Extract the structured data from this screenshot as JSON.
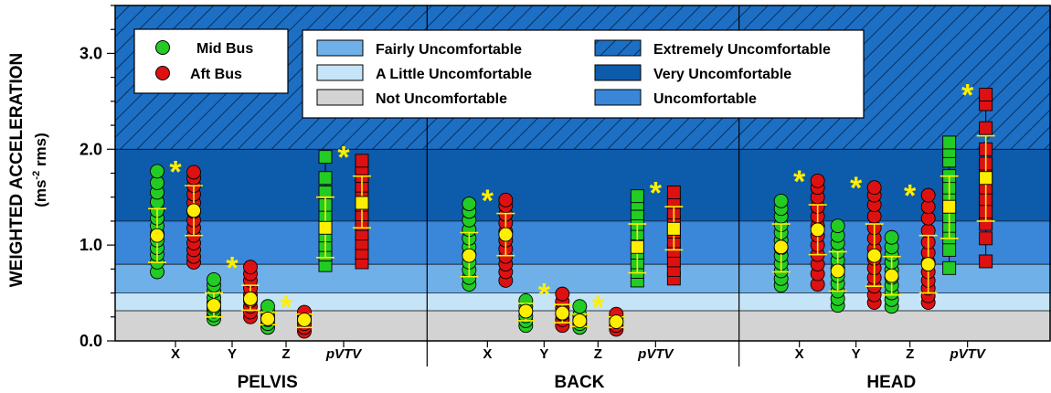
{
  "chart_data": {
    "type": "scatter",
    "ylabel_main": "WEIGHTED ACCELERATION",
    "ylabel_unit_pre": "(ms",
    "ylabel_unit_sup": "-2",
    "ylabel_unit_post": " rms)",
    "ylim": [
      0,
      3.5
    ],
    "yticks": [
      "0.0",
      "1.0",
      "2.0",
      "3.0"
    ],
    "grid": false,
    "legend_placement": "top-left",
    "groups": [
      "PELVIS",
      "BACK",
      "HEAD"
    ],
    "categories": [
      "X",
      "Y",
      "Z",
      "pVTV"
    ],
    "zones": [
      {
        "label": "Not Uncomfortable",
        "from": 0.0,
        "to": 0.315,
        "color": "#d3d3d3"
      },
      {
        "label": "A Little Uncomfortable",
        "from": 0.315,
        "to": 0.5,
        "color": "#c6e4f8"
      },
      {
        "label": "Fairly Uncomfortable",
        "from": 0.5,
        "to": 0.8,
        "color": "#6fb0e8"
      },
      {
        "label": "Uncomfortable",
        "from": 0.8,
        "to": 1.25,
        "color": "#3a86d9"
      },
      {
        "label": "Very Uncomfortable",
        "from": 1.25,
        "to": 2.0,
        "color": "#0d5bab"
      },
      {
        "label": "Extremely Uncomfortable",
        "from": 2.0,
        "to": 3.5,
        "color": "#1d6fc4",
        "hatched": true
      }
    ],
    "zone_legend_order": [
      [
        "Fairly Uncomfortable",
        "Extremely Uncomfortable"
      ],
      [
        "A Little Uncomfortable",
        "Very Uncomfortable"
      ],
      [
        "Not Uncomfortable",
        "Uncomfortable"
      ]
    ],
    "series": [
      {
        "name": "Mid Bus",
        "color": "#22cc22",
        "values": {
          "PELVIS": {
            "X": {
              "min": 0.72,
              "max": 1.77,
              "mean": 1.1,
              "sd_low": 0.82,
              "sd_high": 1.38,
              "pts": [
                0.72,
                0.82,
                0.9,
                0.97,
                1.05,
                1.12,
                1.2,
                1.28,
                1.36,
                1.45,
                1.55,
                1.65,
                1.77
              ]
            },
            "Y": {
              "min": 0.23,
              "max": 0.64,
              "mean": 0.37,
              "sd_low": 0.25,
              "sd_high": 0.5,
              "pts": [
                0.23,
                0.27,
                0.31,
                0.35,
                0.4,
                0.45,
                0.52,
                0.58,
                0.64
              ]
            },
            "Z": {
              "min": 0.14,
              "max": 0.36,
              "mean": 0.23,
              "sd_low": 0.17,
              "sd_high": 0.3,
              "pts": [
                0.14,
                0.18,
                0.22,
                0.26,
                0.31,
                0.36
              ]
            },
            "pVTV": {
              "min": 0.79,
              "max": 1.92,
              "mean": 1.18,
              "sd_low": 0.87,
              "sd_high": 1.5,
              "pts": [
                0.79,
                0.9,
                1.0,
                1.1,
                1.2,
                1.3,
                1.42,
                1.55,
                1.7,
                1.92
              ]
            }
          },
          "BACK": {
            "X": {
              "min": 0.59,
              "max": 1.43,
              "mean": 0.89,
              "sd_low": 0.67,
              "sd_high": 1.13,
              "pts": [
                0.59,
                0.66,
                0.74,
                0.82,
                0.9,
                0.98,
                1.07,
                1.16,
                1.26,
                1.35,
                1.43
              ]
            },
            "Y": {
              "min": 0.16,
              "max": 0.42,
              "mean": 0.31,
              "sd_low": 0.21,
              "sd_high": 0.39,
              "pts": [
                0.16,
                0.21,
                0.26,
                0.31,
                0.36,
                0.42
              ]
            },
            "Z": {
              "min": 0.14,
              "max": 0.36,
              "mean": 0.21,
              "sd_low": 0.15,
              "sd_high": 0.28,
              "pts": [
                0.14,
                0.18,
                0.22,
                0.27,
                0.36
              ]
            },
            "pVTV": {
              "min": 0.63,
              "max": 1.51,
              "mean": 0.98,
              "sd_low": 0.71,
              "sd_high": 1.22,
              "pts": [
                0.63,
                0.72,
                0.82,
                0.92,
                1.02,
                1.12,
                1.22,
                1.33,
                1.43,
                1.51
              ]
            }
          },
          "HEAD": {
            "X": {
              "min": 0.58,
              "max": 1.46,
              "mean": 0.98,
              "sd_low": 0.72,
              "sd_high": 1.22,
              "pts": [
                0.58,
                0.65,
                0.73,
                0.81,
                0.89,
                0.97,
                1.05,
                1.13,
                1.21,
                1.3,
                1.38,
                1.46
              ]
            },
            "Y": {
              "min": 0.37,
              "max": 1.2,
              "mean": 0.73,
              "sd_low": 0.52,
              "sd_high": 0.93,
              "pts": [
                0.37,
                0.44,
                0.52,
                0.6,
                0.68,
                0.76,
                0.84,
                0.93,
                1.02,
                1.1,
                1.2
              ]
            },
            "Z": {
              "min": 0.36,
              "max": 1.08,
              "mean": 0.68,
              "sd_low": 0.48,
              "sd_high": 0.88,
              "pts": [
                0.36,
                0.43,
                0.5,
                0.58,
                0.66,
                0.74,
                0.82,
                0.9,
                0.98,
                1.08
              ]
            },
            "pVTV": {
              "min": 0.76,
              "max": 2.07,
              "mean": 1.4,
              "sd_low": 1.07,
              "sd_high": 1.72,
              "pts": [
                0.76,
                0.95,
                1.08,
                1.2,
                1.3,
                1.4,
                1.5,
                1.6,
                1.72,
                1.88,
                1.98,
                2.07
              ]
            }
          }
        }
      },
      {
        "name": "Aft Bus",
        "color": "#dd1111",
        "values": {
          "PELVIS": {
            "X": {
              "min": 0.82,
              "max": 1.76,
              "mean": 1.36,
              "sd_low": 1.1,
              "sd_high": 1.62,
              "pts": [
                0.82,
                0.88,
                0.95,
                1.02,
                1.1,
                1.18,
                1.26,
                1.35,
                1.44,
                1.53,
                1.62,
                1.7,
                1.76
              ]
            },
            "Y": {
              "min": 0.25,
              "max": 0.77,
              "mean": 0.44,
              "sd_low": 0.32,
              "sd_high": 0.58,
              "pts": [
                0.25,
                0.3,
                0.36,
                0.42,
                0.48,
                0.55,
                0.63,
                0.7,
                0.77
              ]
            },
            "Z": {
              "min": 0.1,
              "max": 0.3,
              "mean": 0.22,
              "sd_low": 0.14,
              "sd_high": 0.28,
              "pts": [
                0.1,
                0.14,
                0.18,
                0.22,
                0.26,
                0.3
              ]
            },
            "pVTV": {
              "min": 0.82,
              "max": 1.88,
              "mean": 1.44,
              "sd_low": 1.18,
              "sd_high": 1.72,
              "pts": [
                0.82,
                0.92,
                1.02,
                1.12,
                1.22,
                1.32,
                1.42,
                1.52,
                1.62,
                1.72,
                1.8,
                1.88
              ]
            }
          },
          "BACK": {
            "X": {
              "min": 0.63,
              "max": 1.47,
              "mean": 1.11,
              "sd_low": 0.89,
              "sd_high": 1.33,
              "pts": [
                0.63,
                0.72,
                0.8,
                0.88,
                0.96,
                1.05,
                1.14,
                1.23,
                1.32,
                1.41,
                1.47
              ]
            },
            "Y": {
              "min": 0.16,
              "max": 0.49,
              "mean": 0.29,
              "sd_low": 0.19,
              "sd_high": 0.38,
              "pts": [
                0.16,
                0.22,
                0.28,
                0.34,
                0.41,
                0.49
              ]
            },
            "Z": {
              "min": 0.12,
              "max": 0.28,
              "mean": 0.2,
              "sd_low": 0.14,
              "sd_high": 0.25,
              "pts": [
                0.12,
                0.16,
                0.2,
                0.24,
                0.28
              ]
            },
            "pVTV": {
              "min": 0.65,
              "max": 1.55,
              "mean": 1.17,
              "sd_low": 0.95,
              "sd_high": 1.4,
              "pts": [
                0.65,
                0.74,
                0.84,
                0.94,
                1.04,
                1.14,
                1.24,
                1.34,
                1.45,
                1.55
              ]
            }
          },
          "HEAD": {
            "X": {
              "min": 0.59,
              "max": 1.67,
              "mean": 1.16,
              "sd_low": 0.9,
              "sd_high": 1.42,
              "pts": [
                0.59,
                0.7,
                0.8,
                0.9,
                1.0,
                1.1,
                1.2,
                1.3,
                1.4,
                1.5,
                1.6,
                1.67
              ]
            },
            "Y": {
              "min": 0.4,
              "max": 1.6,
              "mean": 0.89,
              "sd_low": 0.57,
              "sd_high": 1.22,
              "pts": [
                0.4,
                0.48,
                0.57,
                0.66,
                0.76,
                0.86,
                0.96,
                1.07,
                1.18,
                1.3,
                1.42,
                1.52,
                1.6
              ]
            },
            "Z": {
              "min": 0.4,
              "max": 1.52,
              "mean": 0.8,
              "sd_low": 0.5,
              "sd_high": 1.1,
              "pts": [
                0.4,
                0.47,
                0.55,
                0.63,
                0.72,
                0.82,
                0.92,
                1.03,
                1.15,
                1.28,
                1.4,
                1.52
              ]
            },
            "pVTV": {
              "min": 0.83,
              "max": 2.57,
              "mean": 1.7,
              "sd_low": 1.25,
              "sd_high": 2.14,
              "pts": [
                0.83,
                1.07,
                1.22,
                1.35,
                1.48,
                1.6,
                1.72,
                1.85,
                2.0,
                2.22,
                2.47,
                2.57
              ]
            }
          }
        }
      }
    ],
    "significance_marker": "*"
  }
}
